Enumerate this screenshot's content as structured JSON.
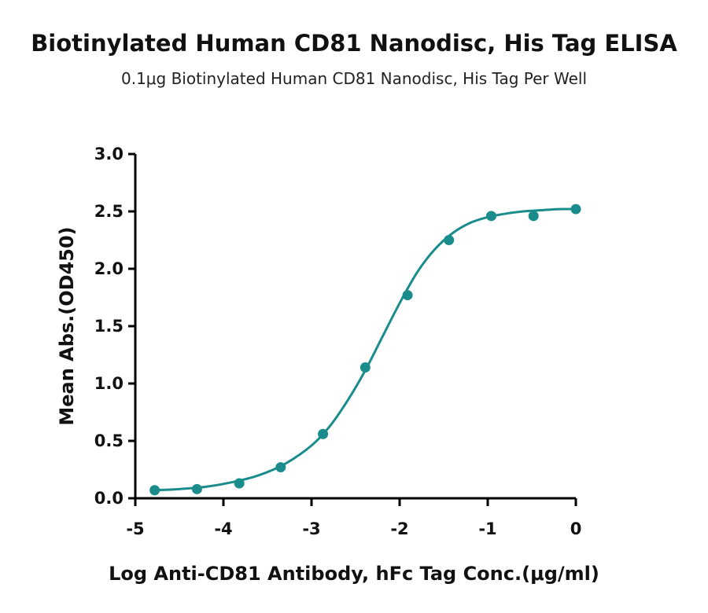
{
  "chart_data": {
    "type": "scatter",
    "title": "Biotinylated Human CD81 Nanodisc, His Tag ELISA",
    "subtitle": "0.1μg Biotinylated Human CD81 Nanodisc, His Tag Per Well",
    "xlabel": "Log Anti-CD81 Antibody, hFc Tag Conc.(μg/ml)",
    "ylabel": "Mean Abs.(OD450)",
    "xlim": [
      -5,
      0
    ],
    "ylim": [
      0,
      3.0
    ],
    "xticks": [
      "-5",
      "-4",
      "-3",
      "-2",
      "-1",
      "0"
    ],
    "yticks": [
      "0.0",
      "0.5",
      "1.0",
      "1.5",
      "2.0",
      "2.5",
      "3.0"
    ],
    "color": "#1a8c8c",
    "grid": false,
    "series": [
      {
        "x": [
          -4.78,
          -4.3,
          -3.82,
          -3.35,
          -2.87,
          -2.39,
          -1.91,
          -1.44,
          -0.96,
          -0.48,
          0.0
        ],
        "y": [
          0.07,
          0.08,
          0.13,
          0.27,
          0.56,
          1.14,
          1.77,
          2.25,
          2.46,
          2.46,
          2.52
        ]
      }
    ],
    "fit_curve": {
      "x": [
        -4.78,
        -4.5,
        -4.2,
        -3.9,
        -3.6,
        -3.3,
        -3.0,
        -2.8,
        -2.6,
        -2.4,
        -2.2,
        -2.0,
        -1.8,
        -1.6,
        -1.4,
        -1.2,
        -1.0,
        -0.8,
        -0.6,
        -0.4,
        -0.2,
        0.0
      ],
      "y": [
        0.07,
        0.08,
        0.1,
        0.14,
        0.2,
        0.3,
        0.46,
        0.62,
        0.84,
        1.1,
        1.4,
        1.7,
        1.97,
        2.17,
        2.31,
        2.4,
        2.45,
        2.48,
        2.5,
        2.51,
        2.52,
        2.52
      ]
    }
  }
}
